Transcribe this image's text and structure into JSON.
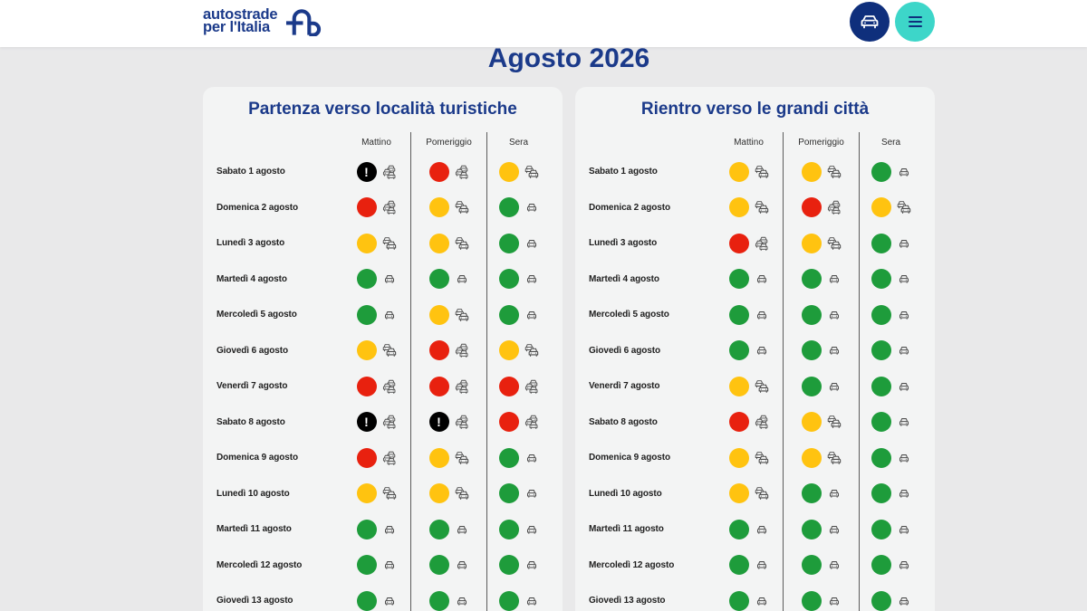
{
  "header": {
    "logo_line1": "autostrade",
    "logo_line2": "per l'Italia",
    "logo_icon": "autostrade-a-logo-icon",
    "traffic_button_icon": "car-icon",
    "menu_button_icon": "hamburger-menu-icon"
  },
  "colors": {
    "brand_blue": "#1b3a8a",
    "traffic_button": "#0f2f7c",
    "menu_button": "#3dd6c9",
    "page_bg": "#e9e9ea",
    "card_bg": "#f3f4f4"
  },
  "page_title": "Agosto 2026",
  "periods": [
    "Mattino",
    "Pomeriggio",
    "Sera"
  ],
  "levels": {
    "green": {
      "color": "#1e9c3b",
      "icon": "single-car-icon"
    },
    "yellow": {
      "color": "#ffc310",
      "icon": "slow-traffic-icon"
    },
    "red": {
      "color": "#e8210f",
      "icon": "traffic-queue-icon"
    },
    "black": {
      "color": "#000000",
      "icon": "traffic-queue-icon",
      "mark": "!"
    }
  },
  "cards": [
    {
      "title": "Partenza verso località turistiche",
      "rows": [
        {
          "day": "Sabato 1 agosto",
          "levels": [
            "black",
            "red",
            "yellow"
          ]
        },
        {
          "day": "Domenica 2 agosto",
          "levels": [
            "red",
            "yellow",
            "green"
          ]
        },
        {
          "day": "Lunedì 3 agosto",
          "levels": [
            "yellow",
            "yellow",
            "green"
          ]
        },
        {
          "day": "Martedì 4 agosto",
          "levels": [
            "green",
            "green",
            "green"
          ]
        },
        {
          "day": "Mercoledì 5 agosto",
          "levels": [
            "green",
            "yellow",
            "green"
          ]
        },
        {
          "day": "Giovedì 6 agosto",
          "levels": [
            "yellow",
            "red",
            "yellow"
          ]
        },
        {
          "day": "Venerdì 7 agosto",
          "levels": [
            "red",
            "red",
            "red"
          ]
        },
        {
          "day": "Sabato 8 agosto",
          "levels": [
            "black",
            "black",
            "red"
          ]
        },
        {
          "day": "Domenica 9 agosto",
          "levels": [
            "red",
            "yellow",
            "green"
          ]
        },
        {
          "day": "Lunedì 10 agosto",
          "levels": [
            "yellow",
            "yellow",
            "green"
          ]
        },
        {
          "day": "Martedì 11 agosto",
          "levels": [
            "green",
            "green",
            "green"
          ]
        },
        {
          "day": "Mercoledì 12 agosto",
          "levels": [
            "green",
            "green",
            "green"
          ]
        },
        {
          "day": "Giovedì 13 agosto",
          "levels": [
            "green",
            "green",
            "green"
          ]
        }
      ]
    },
    {
      "title": "Rientro verso le grandi città",
      "rows": [
        {
          "day": "Sabato 1 agosto",
          "levels": [
            "yellow",
            "yellow",
            "green"
          ]
        },
        {
          "day": "Domenica 2 agosto",
          "levels": [
            "yellow",
            "red",
            "yellow"
          ]
        },
        {
          "day": "Lunedì 3 agosto",
          "levels": [
            "red",
            "yellow",
            "green"
          ]
        },
        {
          "day": "Martedì 4 agosto",
          "levels": [
            "green",
            "green",
            "green"
          ]
        },
        {
          "day": "Mercoledì 5 agosto",
          "levels": [
            "green",
            "green",
            "green"
          ]
        },
        {
          "day": "Giovedì 6 agosto",
          "levels": [
            "green",
            "green",
            "green"
          ]
        },
        {
          "day": "Venerdì 7 agosto",
          "levels": [
            "yellow",
            "green",
            "green"
          ]
        },
        {
          "day": "Sabato 8 agosto",
          "levels": [
            "red",
            "yellow",
            "green"
          ]
        },
        {
          "day": "Domenica 9 agosto",
          "levels": [
            "yellow",
            "yellow",
            "green"
          ]
        },
        {
          "day": "Lunedì 10 agosto",
          "levels": [
            "yellow",
            "green",
            "green"
          ]
        },
        {
          "day": "Martedì 11 agosto",
          "levels": [
            "green",
            "green",
            "green"
          ]
        },
        {
          "day": "Mercoledì 12 agosto",
          "levels": [
            "green",
            "green",
            "green"
          ]
        },
        {
          "day": "Giovedì 13 agosto",
          "levels": [
            "green",
            "green",
            "green"
          ]
        }
      ]
    }
  ]
}
